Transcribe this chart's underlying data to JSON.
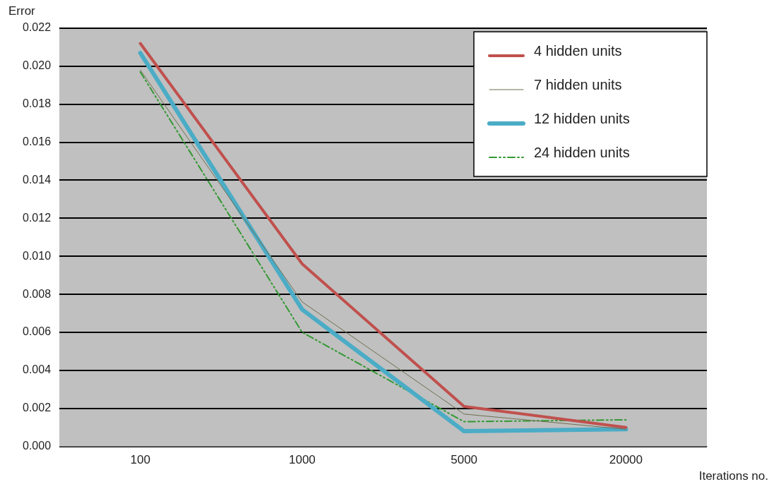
{
  "chart_data": {
    "type": "line",
    "xlabel": "Iterations no.",
    "ylabel": "Error",
    "categories": [
      "100",
      "1000",
      "5000",
      "20000"
    ],
    "series": [
      {
        "name": "4 hidden units",
        "color": "#c0504d",
        "values": [
          0.0212,
          0.0096,
          0.0021,
          0.001
        ]
      },
      {
        "name": "7 hidden units",
        "color": "#6e6e50",
        "values": [
          0.0198,
          0.0076,
          0.0017,
          0.0009
        ]
      },
      {
        "name": "12 hidden units",
        "color": "#4bacc6",
        "values": [
          0.0207,
          0.0072,
          0.0008,
          0.0009
        ]
      },
      {
        "name": "24 hidden units",
        "color": "#339933",
        "values": [
          0.0197,
          0.006,
          0.0013,
          0.0014
        ],
        "line_style": "dashed"
      }
    ],
    "ylim": [
      0,
      0.022
    ],
    "yticks": [
      {
        "value": 0,
        "label": "0.000"
      },
      {
        "value": 0.002,
        "label": "0.002"
      },
      {
        "value": 0.004,
        "label": "0.004"
      },
      {
        "value": 0.006,
        "label": "0.006"
      },
      {
        "value": 0.008,
        "label": "0.008"
      },
      {
        "value": 0.01,
        "label": "0.010"
      },
      {
        "value": 0.012,
        "label": "0.012"
      },
      {
        "value": 0.014,
        "label": "0.014"
      },
      {
        "value": 0.016,
        "label": "0.016"
      },
      {
        "value": 0.018,
        "label": "0.018"
      },
      {
        "value": 0.02,
        "label": "0.020"
      },
      {
        "value": 0.022,
        "label": "0.022"
      }
    ],
    "grid": "y",
    "legend": "top right",
    "marker": "none"
  }
}
